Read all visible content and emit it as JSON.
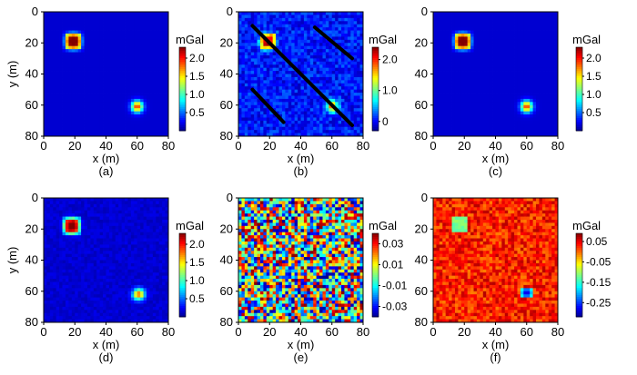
{
  "figure": {
    "panels": [
      "(a)",
      "(b)",
      "(c)",
      "(d)",
      "(e)",
      "(f)"
    ]
  },
  "chart_data": [
    {
      "type": "heatmap",
      "caption": "(a)",
      "xlabel": "x (m)",
      "ylabel": "y (m)",
      "xlim": [
        0,
        80
      ],
      "ylim": [
        0,
        80
      ],
      "x_ticks": [
        0,
        20,
        40,
        60,
        80
      ],
      "y_ticks": [
        0,
        20,
        40,
        60,
        80
      ],
      "y_axis": "inverted",
      "colorbar": {
        "unit": "mGal",
        "ticks": [
          "2.0",
          "1.5",
          "1.0",
          "0.5"
        ],
        "range": [
          0.0,
          2.3
        ]
      },
      "anomalies": [
        {
          "shape": "square",
          "x": 19,
          "y": 19,
          "peak": 2.2
        },
        {
          "shape": "circle",
          "x": 60,
          "y": 61,
          "peak": 1.8
        }
      ],
      "noise": "none"
    },
    {
      "type": "heatmap",
      "caption": "(b)",
      "xlabel": "x (m)",
      "ylabel": "",
      "xlim": [
        0,
        80
      ],
      "ylim": [
        0,
        80
      ],
      "x_ticks": [
        0,
        20,
        40,
        60,
        80
      ],
      "y_ticks": [
        0,
        20,
        40,
        60,
        80
      ],
      "y_axis": "inverted",
      "colorbar": {
        "unit": "mGal",
        "ticks": [
          "2.0",
          "1.0",
          "0"
        ],
        "range": [
          -0.3,
          2.4
        ]
      },
      "anomalies": [
        {
          "shape": "square",
          "x": 19,
          "y": 19,
          "peak": 2.2
        },
        {
          "shape": "circle",
          "x": 60,
          "y": 61,
          "peak": 1.8
        }
      ],
      "stripes": [
        {
          "from": [
            9,
            9
          ],
          "to": [
            73,
            73
          ]
        },
        {
          "from": [
            49,
            10
          ],
          "to": [
            73,
            30
          ]
        },
        {
          "from": [
            9,
            50
          ],
          "to": [
            29,
            71
          ]
        }
      ],
      "noise": "moderate"
    },
    {
      "type": "heatmap",
      "caption": "(c)",
      "xlabel": "x (m)",
      "ylabel": "",
      "xlim": [
        0,
        80
      ],
      "ylim": [
        0,
        80
      ],
      "x_ticks": [
        0,
        20,
        40,
        60,
        80
      ],
      "y_ticks": [
        0,
        20,
        40,
        60,
        80
      ],
      "y_axis": "inverted",
      "colorbar": {
        "unit": "mGal",
        "ticks": [
          "2.0",
          "1.5",
          "1.0",
          "0.5"
        ],
        "range": [
          0.0,
          2.3
        ]
      },
      "anomalies": [
        {
          "shape": "square",
          "x": 19,
          "y": 19,
          "peak": 2.2
        },
        {
          "shape": "circle",
          "x": 60,
          "y": 61,
          "peak": 1.8
        }
      ],
      "noise": "none"
    },
    {
      "type": "heatmap",
      "caption": "(d)",
      "xlabel": "x (m)",
      "ylabel": "y (m)",
      "xlim": [
        0,
        80
      ],
      "ylim": [
        0,
        80
      ],
      "x_ticks": [
        0,
        20,
        40,
        60,
        80
      ],
      "y_ticks": [
        0,
        20,
        40,
        60,
        80
      ],
      "y_axis": "inverted",
      "colorbar": {
        "unit": "mGal",
        "ticks": [
          "2.0",
          "1.5",
          "1.0",
          "0.5"
        ],
        "range": [
          0.0,
          2.3
        ]
      },
      "anomalies": [
        {
          "shape": "square",
          "x": 18,
          "y": 18,
          "peak": 2.2
        },
        {
          "shape": "circle",
          "x": 61,
          "y": 62,
          "peak": 1.7
        }
      ],
      "noise": "low"
    },
    {
      "type": "heatmap",
      "caption": "(e)",
      "xlabel": "x (m)",
      "ylabel": "",
      "xlim": [
        0,
        80
      ],
      "ylim": [
        0,
        80
      ],
      "x_ticks": [
        0,
        20,
        40,
        60,
        80
      ],
      "y_ticks": [
        0,
        20,
        40,
        60,
        80
      ],
      "y_axis": "inverted",
      "colorbar": {
        "unit": "mGal",
        "ticks": [
          "0.03",
          "0.01",
          "-0.01",
          "-0.03"
        ],
        "range": [
          -0.04,
          0.04
        ]
      },
      "anomalies": [],
      "noise": "random"
    },
    {
      "type": "heatmap",
      "caption": "(f)",
      "xlabel": "x (m)",
      "ylabel": "",
      "xlim": [
        0,
        80
      ],
      "ylim": [
        0,
        80
      ],
      "x_ticks": [
        0,
        20,
        40,
        60,
        80
      ],
      "y_ticks": [
        0,
        20,
        40,
        60,
        80
      ],
      "y_axis": "inverted",
      "colorbar": {
        "unit": "mGal",
        "ticks": [
          "0.05",
          "-0.05",
          "-0.15",
          "-0.25"
        ],
        "range": [
          -0.32,
          0.09
        ]
      },
      "anomalies": [
        {
          "shape": "square",
          "x": 17,
          "y": 17,
          "peak": -0.12
        },
        {
          "shape": "circle",
          "x": 60,
          "y": 61,
          "peak": -0.32
        }
      ],
      "noise": "residual"
    }
  ]
}
